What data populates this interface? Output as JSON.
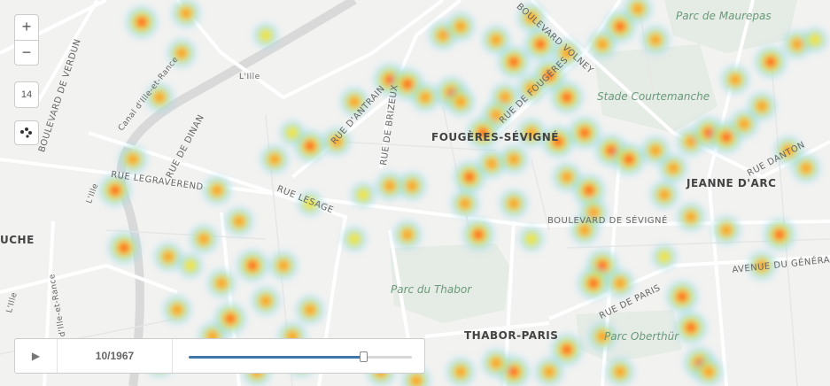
{
  "map": {
    "streets": [
      {
        "text": "BOULEVARD DE VERDUN"
      },
      {
        "text": "Canal d'Ille-et-Rance"
      },
      {
        "text": "L'Ille"
      },
      {
        "text": "L'Ille"
      },
      {
        "text": "RUE DE DINAN"
      },
      {
        "text": "RUE LEGRAVEREND"
      },
      {
        "text": "RUE LESAGE"
      },
      {
        "text": "RUE D'ANTRAIN"
      },
      {
        "text": "RUE DE BRIZEUX"
      },
      {
        "text": "RUE DE FOUGÈRES"
      },
      {
        "text": "BOULEVARD VOLNEY"
      },
      {
        "text": "BOULEVARD DE SÉVIGNÉ"
      },
      {
        "text": "RUE DE PARIS"
      },
      {
        "text": "AVENUE DU GÉNÉRAL"
      },
      {
        "text": "RUE DANTON"
      },
      {
        "text": "Canal d'Ille-et-Rance"
      },
      {
        "text": "L'Ille"
      }
    ],
    "districts": [
      "FOUGÈRES-SÉVIGNÉ",
      "JEANNE D'ARC",
      "THABOR-PARIS",
      "UCHE"
    ],
    "parks": [
      "Parc de Maurepas",
      "Stade Courtemanche",
      "Parc du Thabor",
      "Parc Oberthür"
    ]
  },
  "controls": {
    "zoom_in": "+",
    "zoom_out": "−",
    "zoom_level": "14",
    "zoom_in_icon": "plus-icon",
    "zoom_out_icon": "minus-icon",
    "locate_icon": "dots-icon"
  },
  "player": {
    "play_icon": "play-icon",
    "play_label": "▶",
    "frame_label": "10/1967",
    "progress": 0.78
  }
}
